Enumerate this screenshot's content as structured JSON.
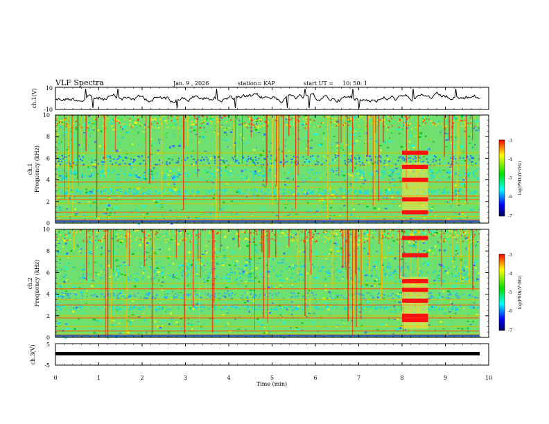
{
  "header": {
    "title": "VLF Spectra",
    "date": "Jan. 9 , 2026",
    "station": "station= KAP",
    "start_label": "start  UT  =",
    "start_time": "10: 50: 1"
  },
  "colorbar": {
    "label": "log(PSD)(V²/Hz)",
    "ticks": [
      "-3",
      "-4",
      "-5",
      "-6",
      "-7"
    ],
    "stops": [
      "#ff0000",
      "#ffff00",
      "#00e000",
      "#00ffff",
      "#0000ff",
      "#000060"
    ]
  },
  "chart_data": [
    {
      "type": "line",
      "name": "ch1-waveform",
      "ylabel": "ch.1(V)",
      "ylim": [
        -10,
        10
      ],
      "yticks": [
        "10",
        "-10"
      ],
      "xlim": [
        0,
        10
      ],
      "description_free": true
    },
    {
      "type": "heatmap",
      "name": "ch1-spectrogram",
      "ylabel_top": "ch.1",
      "ylabel": "Frequency  (kHz)",
      "ylim": [
        0,
        10
      ],
      "yticks": [
        "0",
        "2",
        "4",
        "6",
        "8",
        "10"
      ],
      "xlim": [
        0,
        10
      ],
      "bands_khz": [
        0.3,
        0.6,
        1.0,
        1.8,
        2.2,
        2.5,
        3.3,
        3.8,
        5.3,
        6.5
      ],
      "burst_min": [
        8.0,
        8.6
      ]
    },
    {
      "type": "heatmap",
      "name": "ch2-spectrogram",
      "ylabel_top": "ch.2",
      "ylabel": "Frequency  (kHz)",
      "ylim": [
        0,
        10
      ],
      "yticks": [
        "0",
        "2",
        "4",
        "6",
        "8",
        "10"
      ],
      "xlim": [
        0,
        10
      ],
      "bands_khz": [
        0.3,
        0.6,
        1.0,
        1.8,
        2.0,
        3.0,
        3.5,
        4.5,
        5.0,
        7.5
      ],
      "burst_min": [
        8.0,
        8.6
      ]
    },
    {
      "type": "line",
      "name": "ch3-waveform",
      "ylabel": "ch.3(V)",
      "ylim": [
        -5,
        5
      ],
      "yticks": [
        "5",
        "-5"
      ],
      "xlim": [
        0,
        10
      ],
      "constant_level_v": 0
    }
  ],
  "xaxis": {
    "label": "Time  (min)",
    "ticks": [
      "0",
      "1",
      "2",
      "3",
      "4",
      "5",
      "6",
      "7",
      "8",
      "9",
      "10"
    ]
  }
}
